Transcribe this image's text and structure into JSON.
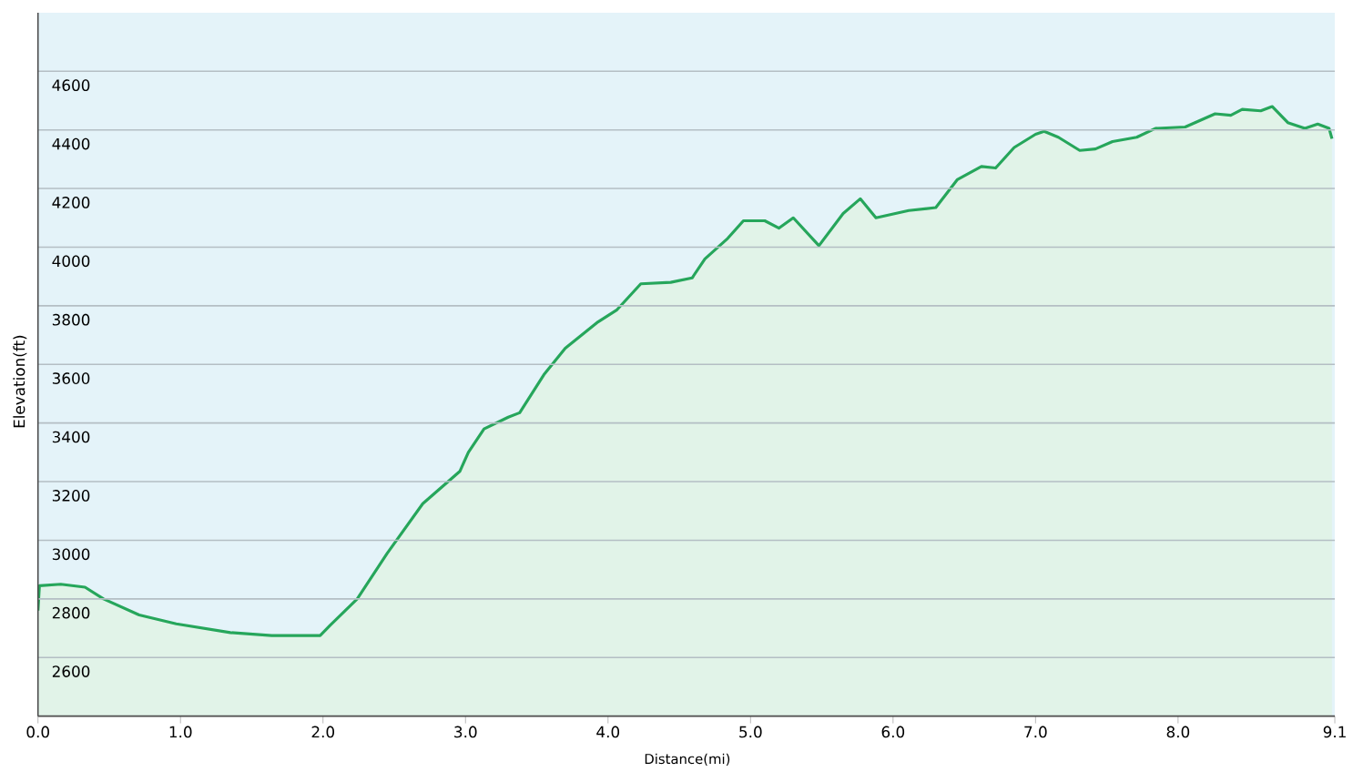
{
  "chart_data": {
    "type": "area",
    "xlabel": "Distance(mi)",
    "ylabel": "Elevation(ft)",
    "x": [
      0,
      0.01,
      0.16,
      0.33,
      0.46,
      0.71,
      0.97,
      1.35,
      1.64,
      1.98,
      2.05,
      2.24,
      2.45,
      2.7,
      2.96,
      3.02,
      3.13,
      3.3,
      3.38,
      3.55,
      3.7,
      3.93,
      4.06,
      4.23,
      4.44,
      4.59,
      4.68,
      4.84,
      4.95,
      5.1,
      5.2,
      5.3,
      5.48,
      5.65,
      5.77,
      5.88,
      6.11,
      6.3,
      6.45,
      6.62,
      6.72,
      6.85,
      7.0,
      7.06,
      7.16,
      7.31,
      7.42,
      7.54,
      7.71,
      7.84,
      8.05,
      8.26,
      8.37,
      8.45,
      8.58,
      8.66,
      8.77,
      8.89,
      8.98,
      9.06,
      9.08
    ],
    "series": [
      {
        "color": "#26a65b",
        "values": [
          2760,
          2845,
          2850,
          2840,
          2800,
          2745,
          2715,
          2685,
          2675,
          2675,
          2710,
          2800,
          2955,
          3125,
          3235,
          3300,
          3380,
          3420,
          3435,
          3565,
          3655,
          3745,
          3785,
          3875,
          3880,
          3895,
          3960,
          4030,
          4090,
          4090,
          4065,
          4100,
          4005,
          4115,
          4165,
          4100,
          4125,
          4135,
          4230,
          4275,
          4270,
          4340,
          4385,
          4395,
          4375,
          4330,
          4335,
          4360,
          4375,
          4405,
          4410,
          4455,
          4450,
          4470,
          4465,
          4480,
          4425,
          4405,
          4420,
          4405,
          4370
        ]
      }
    ],
    "xlim": [
      0,
      9.1
    ],
    "ylim": [
      2400,
      4800
    ],
    "xticks": [
      {
        "value": 0,
        "label": "0.0"
      },
      {
        "value": 1,
        "label": "1.0"
      },
      {
        "value": 2,
        "label": "2.0"
      },
      {
        "value": 3,
        "label": "3.0"
      },
      {
        "value": 4,
        "label": "4.0"
      },
      {
        "value": 5,
        "label": "5.0"
      },
      {
        "value": 6,
        "label": "6.0"
      },
      {
        "value": 7,
        "label": "7.0"
      },
      {
        "value": 8,
        "label": "8.0"
      },
      9.1
    ],
    "yticks": [
      2600,
      2800,
      3000,
      3200,
      3400,
      3600,
      3800,
      4000,
      4200,
      4400,
      4600
    ],
    "grid": "y"
  }
}
